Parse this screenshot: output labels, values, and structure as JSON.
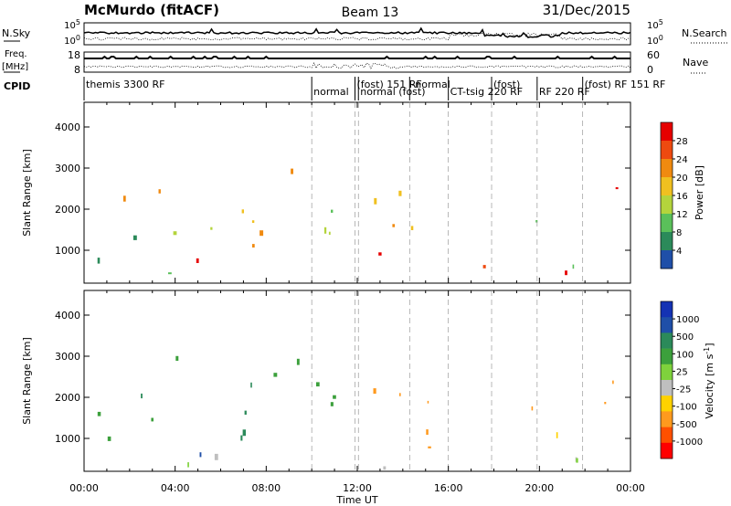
{
  "header": {
    "station": "McMurdo (fitACF)",
    "beam": "Beam 13",
    "date": "31/Dec/2015"
  },
  "noise_panel": {
    "left_label": "N.Sky",
    "left_ticks": [
      "10^5",
      "10^0"
    ],
    "right_label": "N.Search",
    "right_ticks": [
      "10^5",
      "10^0"
    ]
  },
  "freq_panel": {
    "left_label_1": "Freq.",
    "left_label_2": "[MHz]",
    "left_ticks": [
      "18",
      "8"
    ],
    "right_label": "Nave",
    "right_ticks": [
      "60",
      "0"
    ]
  },
  "cpid": {
    "label": "CPID",
    "segments": [
      {
        "start_h": 0.0,
        "text": "themis 3300 RF"
      },
      {
        "start_h": 10.0,
        "text": "normal"
      },
      {
        "start_h": 11.9,
        "text": "(fost) 151 RF"
      },
      {
        "start_h": 12.05,
        "text": "normal (fost)"
      },
      {
        "start_h": 14.3,
        "text": "-normal"
      },
      {
        "start_h": 16.0,
        "text": "CT-tsig 220 RF"
      },
      {
        "start_h": 17.9,
        "text": "(fost)"
      },
      {
        "start_h": 19.9,
        "text": "RF 220 RF"
      },
      {
        "start_h": 21.9,
        "text": "(fost) RF 151 RF"
      }
    ]
  },
  "colors": {
    "power_scale": [
      "#0000ff",
      "#1f4fa8",
      "#2b8a5a",
      "#5ac05a",
      "#b4d43c",
      "#f0c020",
      "#f08a10",
      "#ee4a10",
      "#e60000"
    ],
    "velocity_scale": [
      "#ff0000",
      "#ff5000",
      "#ff9a1e",
      "#ffd200",
      "#bfbfbf",
      "#7fd23c",
      "#3ca03c",
      "#2b8a5a",
      "#1f4fa8",
      "#1432b4"
    ]
  },
  "chart_data": [
    {
      "type": "heatmap",
      "name": "power",
      "ylabel": "Slant Range [km]",
      "xlabel": "Time UT",
      "xlim": [
        0,
        24
      ],
      "ylim": [
        200,
        4600
      ],
      "x_ticks": [
        "00:00",
        "04:00",
        "08:00",
        "12:00",
        "16:00",
        "20:00",
        "00:00"
      ],
      "y_ticks": [
        1000,
        2000,
        3000,
        4000
      ],
      "colorbar": {
        "label": "Power [dB]",
        "ticks": [
          "28",
          "24",
          "20",
          "16",
          "12",
          "8",
          "4"
        ],
        "range": [
          0,
          30
        ]
      },
      "regions": [
        {
          "t0": 0.3,
          "t1": 10.5,
          "r0": 300,
          "r1": 450,
          "value": 14
        },
        {
          "t0": 0.8,
          "t1": 3.0,
          "r0": 2100,
          "r1": 2600,
          "value": 22
        },
        {
          "t0": 2.5,
          "t1": 5.0,
          "r0": 2400,
          "r1": 2900,
          "value": 24
        },
        {
          "t0": 3.0,
          "t1": 6.5,
          "r0": 1200,
          "r1": 2000,
          "value": 18
        },
        {
          "t0": 4.5,
          "t1": 8.2,
          "r0": 500,
          "r1": 1000,
          "value": 27
        },
        {
          "t0": 6.0,
          "t1": 9.8,
          "r0": 900,
          "r1": 2200,
          "value": 20
        },
        {
          "t0": 7.6,
          "t1": 9.8,
          "r0": 2600,
          "r1": 3500,
          "value": 22
        },
        {
          "t0": 0.2,
          "t1": 3.0,
          "r0": 600,
          "r1": 1500,
          "value": 10
        },
        {
          "t0": 10.0,
          "t1": 11.6,
          "r0": 500,
          "r1": 3000,
          "value": 15
        },
        {
          "t0": 11.9,
          "t1": 13.0,
          "r0": 500,
          "r1": 1300,
          "value": 28
        },
        {
          "t0": 12.2,
          "t1": 15.8,
          "r0": 700,
          "r1": 2400,
          "value": 22
        },
        {
          "t0": 13.5,
          "t1": 16.2,
          "r0": 300,
          "r1": 500,
          "value": 12
        },
        {
          "t0": 16.5,
          "t1": 21.8,
          "r0": 300,
          "r1": 850,
          "value": 28
        },
        {
          "t0": 17.0,
          "t1": 20.0,
          "r0": 900,
          "r1": 1100,
          "value": 14
        },
        {
          "t0": 19.5,
          "t1": 21.6,
          "r0": 1600,
          "r1": 2300,
          "value": 12
        },
        {
          "t0": 21.5,
          "t1": 23.5,
          "r0": 1800,
          "r1": 2800,
          "value": 24
        },
        {
          "t0": 21.0,
          "t1": 24.0,
          "r0": 300,
          "r1": 800,
          "value": 10
        }
      ]
    },
    {
      "type": "heatmap",
      "name": "velocity",
      "ylabel": "Slant Range [km]",
      "xlabel": "Time UT",
      "xlim": [
        0,
        24
      ],
      "ylim": [
        200,
        4600
      ],
      "x_ticks": [
        "00:00",
        "04:00",
        "08:00",
        "12:00",
        "16:00",
        "20:00",
        "00:00"
      ],
      "y_ticks": [
        1000,
        2000,
        3000,
        4000
      ],
      "colorbar": {
        "label": "Velocity [m s^-1]",
        "ticks": [
          "1000",
          "500",
          "100",
          "25",
          "-25",
          "-100",
          "-500",
          "-1000"
        ],
        "range": [
          -1000,
          1000
        ]
      },
      "regions": [
        {
          "t0": 0.3,
          "t1": 3.0,
          "r0": 2000,
          "r1": 2600,
          "value": 700
        },
        {
          "t0": 2.5,
          "t1": 5.0,
          "r0": 2300,
          "r1": 3000,
          "value": 300
        },
        {
          "t0": 0.5,
          "t1": 5.5,
          "r0": 900,
          "r1": 1600,
          "value": 200
        },
        {
          "t0": 4.5,
          "t1": 8.5,
          "r0": 500,
          "r1": 1000,
          "value": 800
        },
        {
          "t0": 6.0,
          "t1": 9.8,
          "r0": 1000,
          "r1": 2400,
          "value": 600
        },
        {
          "t0": 7.6,
          "t1": 9.8,
          "r0": 2500,
          "r1": 3500,
          "value": 400
        },
        {
          "t0": 0.3,
          "t1": 11.0,
          "r0": 300,
          "r1": 600,
          "value": 60
        },
        {
          "t0": 10.0,
          "t1": 11.6,
          "r0": 500,
          "r1": 3000,
          "value": 150
        },
        {
          "t0": 12.0,
          "t1": 16.0,
          "r0": 500,
          "r1": 2400,
          "value": -300
        },
        {
          "t0": 12.0,
          "t1": 16.5,
          "r0": 250,
          "r1": 500,
          "value": -40
        },
        {
          "t0": 16.5,
          "t1": 17.5,
          "r0": 300,
          "r1": 800,
          "value": 150
        },
        {
          "t0": 17.8,
          "t1": 21.8,
          "r0": 300,
          "r1": 1100,
          "value": -60
        },
        {
          "t0": 19.6,
          "t1": 21.0,
          "r0": 1300,
          "r1": 2100,
          "value": -250
        },
        {
          "t0": 21.3,
          "t1": 23.6,
          "r0": 1500,
          "r1": 2900,
          "value": -400
        },
        {
          "t0": 21.0,
          "t1": 24.0,
          "r0": 250,
          "r1": 700,
          "value": 40
        }
      ]
    }
  ]
}
